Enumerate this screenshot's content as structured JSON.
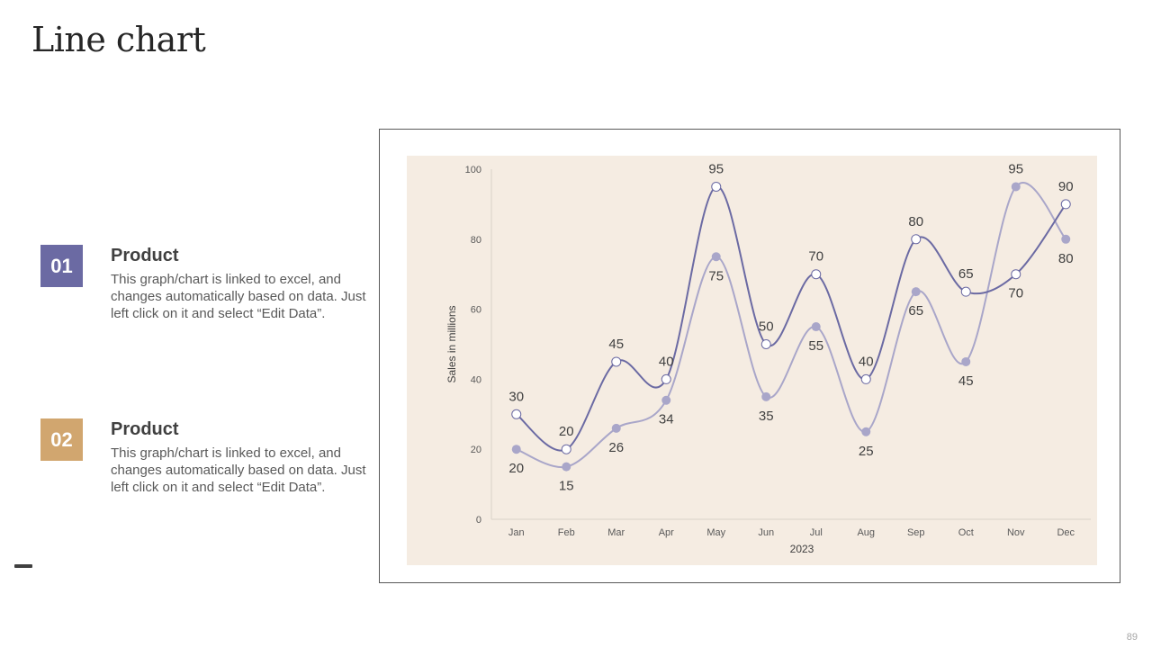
{
  "slide": {
    "title": "Line chart",
    "page_number": "89"
  },
  "items": [
    {
      "number": "01",
      "heading": "Product",
      "description": "This graph/chart is linked to excel, and changes automatically based on data. Just left click on it and select “Edit Data”.",
      "color": "#6b6aa3"
    },
    {
      "number": "02",
      "heading": "Product",
      "description": "This graph/chart is linked to excel, and changes automatically based on data. Just left click on it and select “Edit Data”.",
      "color": "#d1a66f"
    }
  ],
  "chart_data": {
    "type": "line",
    "title": "",
    "categories": [
      "Jan",
      "Feb",
      "Mar",
      "Apr",
      "May",
      "Jun",
      "Jul",
      "Aug",
      "Sep",
      "Oct",
      "Nov",
      "Dec"
    ],
    "xlabel": "2023",
    "ylabel": "Sales in millions",
    "ylim": [
      0,
      100
    ],
    "yticks": [
      0,
      20,
      40,
      60,
      80,
      100
    ],
    "smooth": true,
    "grid": false,
    "background_color": "#f5ece2",
    "series": [
      {
        "name": "Product 01",
        "values": [
          30,
          20,
          45,
          40,
          95,
          50,
          70,
          40,
          80,
          65,
          70,
          90
        ],
        "color": "#6b6aa3",
        "marker": "hollow-circle"
      },
      {
        "name": "Product 02",
        "values": [
          20,
          15,
          26,
          34,
          75,
          35,
          55,
          25,
          65,
          45,
          95,
          80
        ],
        "color": "#a9a6c9",
        "marker": "filled-circle"
      }
    ]
  }
}
